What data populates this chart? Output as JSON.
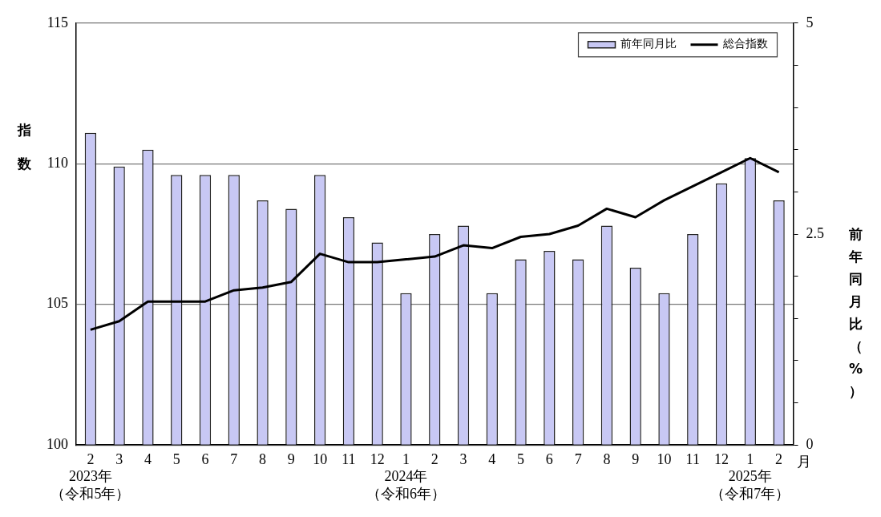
{
  "chart_data": {
    "type": "bar",
    "categories": [
      "2\n2023年（令和5年）",
      "3",
      "4",
      "5",
      "6",
      "7",
      "8",
      "9",
      "10",
      "11",
      "12",
      "1\n2024年（令和6年）",
      "2",
      "3",
      "4",
      "5",
      "6",
      "7",
      "8",
      "9",
      "10",
      "11",
      "12",
      "1\n2025年（令和7年）",
      "2"
    ],
    "series": [
      {
        "name": "前年同月比",
        "axis": "y2",
        "color": "#c8c8f4",
        "values": [
          3.7,
          3.3,
          3.5,
          3.2,
          3.2,
          3.2,
          2.9,
          2.8,
          3.2,
          2.7,
          2.4,
          1.8,
          2.5,
          2.6,
          1.8,
          2.2,
          2.3,
          2.2,
          2.6,
          2.1,
          1.8,
          2.5,
          3.1,
          3.4,
          2.9
        ]
      },
      {
        "name": "総合指数",
        "type": "line",
        "color": "#000000",
        "values": [
          104.1,
          104.4,
          105.1,
          105.1,
          105.1,
          105.5,
          105.6,
          105.8,
          106.8,
          106.5,
          106.5,
          106.6,
          106.7,
          107.1,
          107.0,
          107.4,
          107.5,
          107.8,
          108.4,
          108.1,
          108.7,
          109.2,
          109.7,
          110.2,
          109.7
        ]
      }
    ],
    "xlabel": "月",
    "ylabel": "指数",
    "y2label": "前年同月比（%）",
    "ylim": [
      100,
      115
    ],
    "yticks": [
      100,
      105,
      110,
      115
    ],
    "y2lim": [
      0,
      5
    ],
    "y2ticks": [
      0,
      {
        "value": 0.5,
        "label": null
      },
      {
        "value": 1,
        "label": null
      },
      {
        "value": 1.5,
        "label": null
      },
      {
        "value": 2,
        "label": null
      },
      2.5,
      {
        "value": 3,
        "label": null
      },
      {
        "value": 3.5,
        "label": null
      },
      {
        "value": 4,
        "label": null
      },
      {
        "value": 4.5,
        "label": null
      },
      5
    ],
    "grid": "y",
    "legend": "top right",
    "marker": "none",
    "line_style": "solid"
  }
}
